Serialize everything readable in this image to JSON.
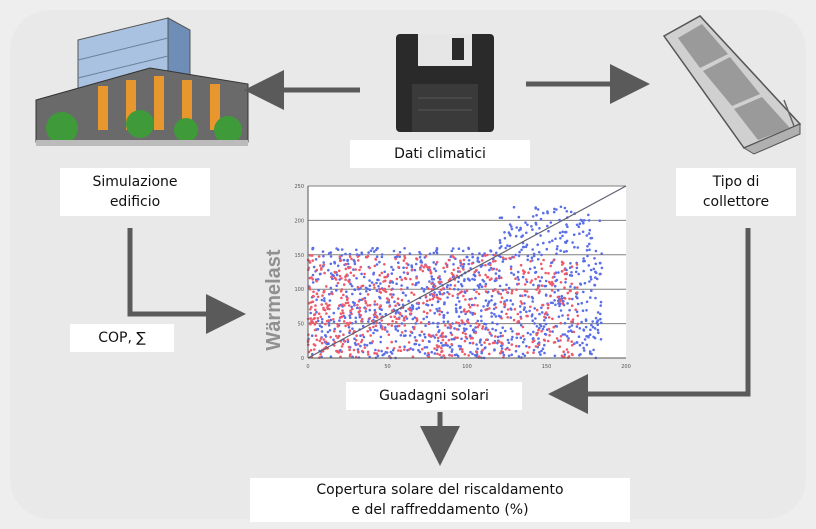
{
  "labels": {
    "climate_data": "Dati climatici",
    "building_sim": [
      "Simulazione",
      "edificio"
    ],
    "collector_type": [
      "Tipo di",
      "collettore"
    ],
    "cop": "COP, ∑",
    "solar_gains": "Guadagni solari",
    "solar_coverage": [
      "Copertura solare del riscaldamento",
      "e del raffreddamento (%)"
    ]
  },
  "icons": [
    "building-icon",
    "floppy-disk-icon",
    "solar-collector-icon"
  ],
  "colors": {
    "arrow": "#5a5a5a",
    "scatter_blue": "#5a6ee8",
    "scatter_red": "#ee5a6a",
    "grid": "#808080"
  },
  "chart_data": {
    "type": "scatter",
    "ylabel": "Wärmelast",
    "x_ticks": [
      "0",
      "50",
      "100",
      "150",
      "200"
    ],
    "y_ticks": [
      "0",
      "50",
      "100",
      "150",
      "200",
      "250"
    ],
    "xlim": [
      0,
      200
    ],
    "ylim": [
      0,
      250
    ],
    "grid_y_values": [
      50,
      100,
      150,
      200,
      250
    ],
    "series": [
      {
        "color": "blue",
        "count": 1100,
        "seed": 7
      },
      {
        "color": "red",
        "count": 700,
        "seed": 13
      }
    ],
    "trend_line": [
      [
        0,
        0
      ],
      [
        200,
        250
      ]
    ]
  }
}
